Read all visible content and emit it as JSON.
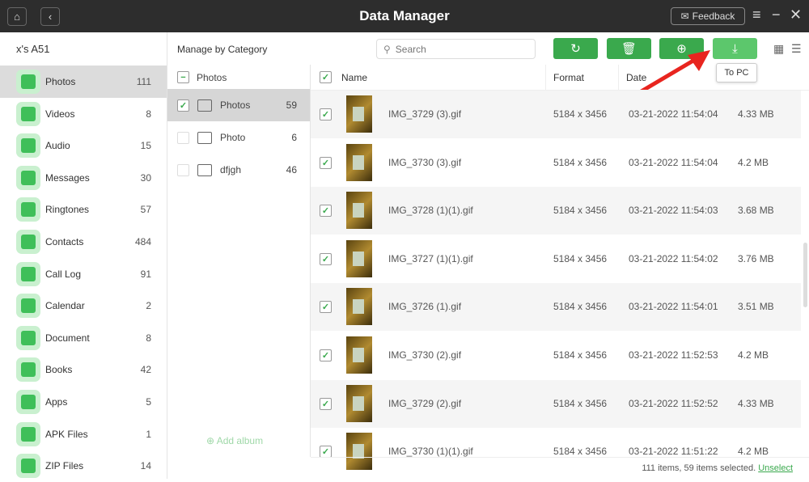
{
  "titlebar": {
    "title": "Data Manager",
    "feedback": "Feedback"
  },
  "sidebar": {
    "device": "x's A51",
    "items": [
      {
        "label": "Photos",
        "count": "111",
        "icon": "photos-icon"
      },
      {
        "label": "Videos",
        "count": "8",
        "icon": "videos-icon"
      },
      {
        "label": "Audio",
        "count": "15",
        "icon": "audio-icon"
      },
      {
        "label": "Messages",
        "count": "30",
        "icon": "messages-icon"
      },
      {
        "label": "Ringtones",
        "count": "57",
        "icon": "ringtones-icon"
      },
      {
        "label": "Contacts",
        "count": "484",
        "icon": "contacts-icon"
      },
      {
        "label": "Call Log",
        "count": "91",
        "icon": "call-log-icon"
      },
      {
        "label": "Calendar",
        "count": "2",
        "icon": "calendar-icon"
      },
      {
        "label": "Document",
        "count": "8",
        "icon": "document-icon"
      },
      {
        "label": "Books",
        "count": "42",
        "icon": "books-icon"
      },
      {
        "label": "Apps",
        "count": "5",
        "icon": "apps-icon"
      },
      {
        "label": "APK Files",
        "count": "1",
        "icon": "apk-icon"
      },
      {
        "label": "ZIP Files",
        "count": "14",
        "icon": "zip-icon"
      }
    ]
  },
  "toolbar": {
    "label": "Manage by Category",
    "search_placeholder": "Search",
    "tooltip": "To PC"
  },
  "categories": {
    "header": "Photos",
    "add_album": "Add album",
    "items": [
      {
        "label": "Photos",
        "count": "59",
        "checked": true
      },
      {
        "label": "Photo",
        "count": "6",
        "checked": false
      },
      {
        "label": "dfjgh",
        "count": "46",
        "checked": false
      }
    ]
  },
  "list": {
    "columns": [
      "Name",
      "Format",
      "Date"
    ],
    "rows": [
      {
        "name": "IMG_3729 (3).gif",
        "format": "5184 x 3456",
        "date": "03-21-2022 11:54:04",
        "size": "4.33 MB"
      },
      {
        "name": "IMG_3730 (3).gif",
        "format": "5184 x 3456",
        "date": "03-21-2022 11:54:04",
        "size": "4.2 MB"
      },
      {
        "name": "IMG_3728 (1)(1).gif",
        "format": "5184 x 3456",
        "date": "03-21-2022 11:54:03",
        "size": "3.68 MB"
      },
      {
        "name": "IMG_3727 (1)(1).gif",
        "format": "5184 x 3456",
        "date": "03-21-2022 11:54:02",
        "size": "3.76 MB"
      },
      {
        "name": "IMG_3726 (1).gif",
        "format": "5184 x 3456",
        "date": "03-21-2022 11:54:01",
        "size": "3.51 MB"
      },
      {
        "name": "IMG_3730 (2).gif",
        "format": "5184 x 3456",
        "date": "03-21-2022 11:52:53",
        "size": "4.2 MB"
      },
      {
        "name": "IMG_3729 (2).gif",
        "format": "5184 x 3456",
        "date": "03-21-2022 11:52:52",
        "size": "4.33 MB"
      },
      {
        "name": "IMG_3730 (1)(1).gif",
        "format": "5184 x 3456",
        "date": "03-21-2022 11:51:22",
        "size": "4.2 MB"
      }
    ]
  },
  "footer": {
    "status": "111 items, 59 items selected.",
    "unselect": "Unselect"
  },
  "colors": {
    "accent": "#3aa94d",
    "titlebar": "#2d2d2d"
  }
}
